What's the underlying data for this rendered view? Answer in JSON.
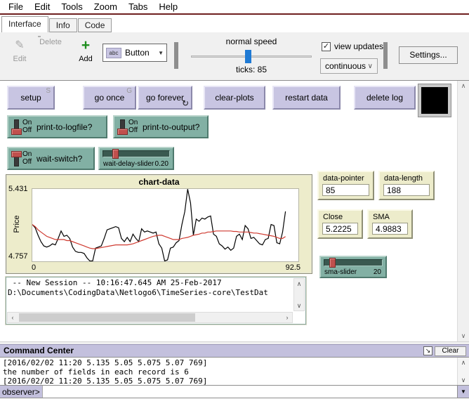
{
  "menu": {
    "items": [
      "File",
      "Edit",
      "Tools",
      "Zoom",
      "Tabs",
      "Help"
    ]
  },
  "tabs": [
    {
      "label": "Interface"
    },
    {
      "label": "Info"
    },
    {
      "label": "Code"
    }
  ],
  "toolbar": {
    "edit_label": "Edit",
    "delete_label": "Delete",
    "add_label": "Add",
    "widget_dropdown": {
      "icon_label": "abc",
      "value": "Button"
    },
    "speed": {
      "label": "normal speed",
      "ticks_label": "ticks: 85",
      "ticks_value": 85
    },
    "view_updates_label": "view updates",
    "view_updates_checked": true,
    "update_mode": "continuous",
    "settings_label": "Settings..."
  },
  "buttons_row": [
    {
      "label": "setup",
      "key": "S"
    },
    {
      "label": "go once",
      "key": "G"
    },
    {
      "label": "go forever",
      "forever": true
    },
    {
      "label": "clear-plots"
    },
    {
      "label": "restart data"
    },
    {
      "label": "delete log"
    }
  ],
  "switches": [
    {
      "label": "print-to-logfile?",
      "on_label": "On",
      "off_label": "Off",
      "state": "Off"
    },
    {
      "label": "print-to-output?",
      "on_label": "On",
      "off_label": "Off",
      "state": "Off"
    },
    {
      "label": "wait-switch?",
      "on_label": "On",
      "off_label": "Off",
      "state": "On"
    }
  ],
  "sliders": [
    {
      "label": "wait-delay-slider",
      "value": "0.20"
    },
    {
      "label": "sma-slider",
      "value": "20"
    }
  ],
  "monitors": [
    {
      "label": "data-pointer",
      "value": "85"
    },
    {
      "label": "data-length",
      "value": "188"
    },
    {
      "label": "Close",
      "value": "5.2225"
    },
    {
      "label": "SMA",
      "value": "4.9883"
    }
  ],
  "output": {
    "lines": [
      " -- New Session -- 10:16:47.645 AM 25-Feb-2017",
      "D:\\Documents\\CodingData\\Netlogo6\\TimeSeries-core\\TestDat"
    ]
  },
  "command_center": {
    "title": "Command Center",
    "clear_label": "Clear",
    "lines": [
      "[2016/02/02 11:20 5.135 5.05 5.075 5.07 769]",
      "the number of fields in each record is 6",
      "[2016/02/02 11:20 5.135 5.05 5.075 5.07 769]"
    ],
    "prompt": "observer>",
    "input_value": ""
  },
  "chart_data": {
    "type": "line",
    "title": "chart-data",
    "xlabel": "",
    "ylabel": "Price",
    "xlim": [
      0,
      92.5
    ],
    "ylim": [
      4.757,
      5.431
    ],
    "x_ticks": [
      "0",
      "92.5"
    ],
    "y_ticks": [
      "4.757",
      "5.431"
    ],
    "grid": false,
    "legend": "none",
    "x_start": 0,
    "x_step": 1,
    "series": [
      {
        "name": "price",
        "color": "#000000",
        "values": [
          5.1,
          5.07,
          5.0,
          4.94,
          4.9,
          4.89,
          4.9,
          4.92,
          4.91,
          4.97,
          5.04,
          4.99,
          5.0,
          4.97,
          4.89,
          4.85,
          4.84,
          4.84,
          4.83,
          4.79,
          4.76,
          4.76,
          4.88,
          4.89,
          4.9,
          4.97,
          5.05,
          5.06,
          5.07,
          5.08,
          5.07,
          4.97,
          4.94,
          4.98,
          4.94,
          5.01,
          4.97,
          4.94,
          5.06,
          5.03,
          5.04,
          5.03,
          5.02,
          5.03,
          4.92,
          4.88,
          4.76,
          4.77,
          4.88,
          4.89,
          4.93,
          4.95,
          5.1,
          5.22,
          5.43,
          5.3,
          5.0,
          5.15,
          5.13,
          5.16,
          5.15,
          5.17,
          5.18,
          5.01,
          4.99,
          4.92,
          4.9,
          4.87,
          4.89,
          4.86,
          4.88,
          4.99,
          5.01,
          4.96,
          5.09,
          5.06,
          4.97,
          4.98,
          4.95,
          4.92,
          4.91,
          4.96,
          4.97,
          5.1,
          5.09,
          4.93,
          4.92,
          5.03,
          5.2225
        ]
      },
      {
        "name": "sma",
        "color": "#cf3a30",
        "values": [
          5.1,
          5.08,
          5.05,
          5.03,
          5.01,
          4.99,
          4.98,
          4.97,
          4.96,
          4.96,
          4.96,
          4.96,
          4.95,
          4.95,
          4.94,
          4.93,
          4.92,
          4.91,
          4.9,
          4.89,
          4.88,
          4.875,
          4.875,
          4.88,
          4.885,
          4.89,
          4.895,
          4.9,
          4.905,
          4.91,
          4.91,
          4.91,
          4.91,
          4.91,
          4.915,
          4.92,
          4.93,
          4.94,
          4.95,
          4.96,
          4.97,
          4.98,
          4.99,
          4.995,
          5.0,
          5.0,
          4.99,
          4.98,
          4.97,
          4.96,
          4.96,
          4.96,
          4.97,
          4.975,
          4.98,
          4.99,
          5.0,
          5.005,
          5.01,
          5.02,
          5.02,
          5.03,
          5.03,
          5.035,
          5.04,
          5.04,
          5.04,
          5.04,
          5.04,
          5.04,
          5.035,
          5.035,
          5.03,
          5.03,
          5.03,
          5.03,
          5.025,
          5.02,
          5.02,
          5.015,
          5.01,
          5.005,
          5.0,
          4.995,
          4.99,
          4.98,
          4.97,
          4.97,
          4.9883
        ]
      }
    ]
  },
  "icons": {
    "pencil": "✎",
    "add_plus": "+",
    "dropdown_arrow": "▼",
    "chevron_down": "∨",
    "forever_loop": "↻",
    "check": "✓",
    "scroll_up": "∧",
    "scroll_down": "∨",
    "scroll_left": "‹",
    "scroll_right": "›",
    "caret_down": "▼",
    "resize_diagonal": "↘"
  },
  "colors": {
    "button_lavender": "#c8c5e2",
    "widget_teal": "#82b0a4",
    "plot_beige": "#edeccb",
    "header_purple": "#c3c0dd",
    "speed_thumb_blue": "#1f7ad4",
    "menu_separator": "#6e1f1f",
    "price_line": "#000000",
    "sma_line": "#cf3a30"
  }
}
